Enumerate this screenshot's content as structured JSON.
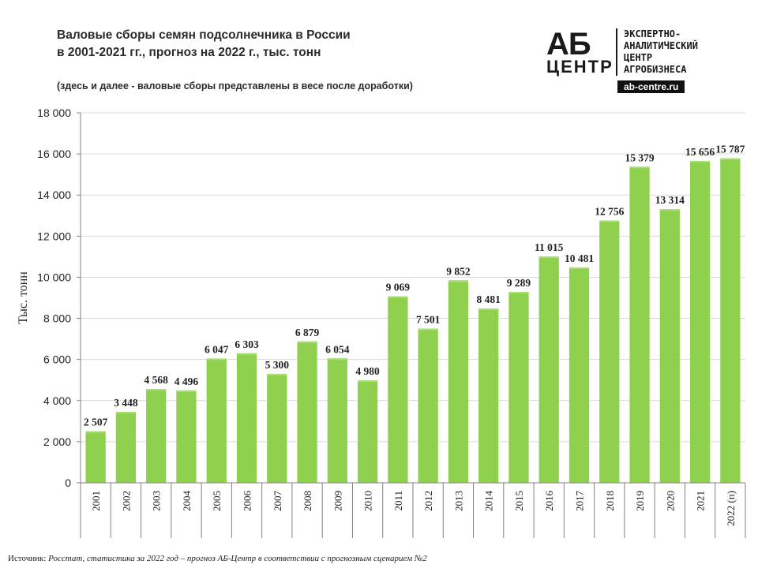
{
  "header": {
    "title_line1": "Валовые сборы семян подсолнечника в России",
    "title_line2": "в 2001-2021 гг., прогноз на 2022 г., тыс. тонн",
    "note": "(здесь и далее - валовые сборы представлены в весе после доработки)"
  },
  "logo": {
    "mark_top": "АБ",
    "mark_bottom": "ЦЕНТР",
    "text_lines": [
      "ЭКСПЕРТНО-",
      "АНАЛИТИЧЕСКИЙ",
      "ЦЕНТР",
      "АГРОБИЗНЕСА"
    ],
    "site": "ab-centre.ru"
  },
  "footer": {
    "source_label": "Источник:",
    "source_text": " Росстат, статистика за 2022 год – прогноз АБ-Центр в соответствии с прогнозным сценарием №2"
  },
  "colors": {
    "bar": "#8fd14f",
    "bar_highlight": "#a8de72",
    "grid": "#d9d9d9",
    "axis": "#808080"
  },
  "chart_data": {
    "type": "bar",
    "title": "Валовые сборы семян подсолнечника в России в 2001-2021 гг., прогноз на 2022 г., тыс. тонн",
    "ylabel": "Тыс. тонн",
    "xlabel": "",
    "ylim": [
      0,
      18000
    ],
    "yticks": [
      0,
      2000,
      4000,
      6000,
      8000,
      10000,
      12000,
      14000,
      16000,
      18000
    ],
    "ytick_labels": [
      "0",
      "2 000",
      "4 000",
      "6 000",
      "8 000",
      "10 000",
      "12 000",
      "14 000",
      "16 000",
      "18 000"
    ],
    "grid": true,
    "categories": [
      "2001",
      "2002",
      "2003",
      "2004",
      "2005",
      "2006",
      "2007",
      "2008",
      "2009",
      "2010",
      "2011",
      "2012",
      "2013",
      "2014",
      "2015",
      "2016",
      "2017",
      "2018",
      "2019",
      "2020",
      "2021",
      "2022 (п)"
    ],
    "values": [
      2507,
      3448,
      4568,
      4496,
      6047,
      6303,
      5300,
      6879,
      6054,
      4980,
      9069,
      7501,
      9852,
      8481,
      9289,
      11015,
      10481,
      12756,
      15379,
      13314,
      15656,
      15787
    ],
    "value_labels": [
      "2 507",
      "3 448",
      "4 568",
      "4 496",
      "6 047",
      "6 303",
      "5 300",
      "6 879",
      "6 054",
      "4 980",
      "9 069",
      "7 501",
      "9 852",
      "8 481",
      "9 289",
      "11 015",
      "10 481",
      "12 756",
      "15 379",
      "13 314",
      "15 656",
      "15 787"
    ]
  }
}
